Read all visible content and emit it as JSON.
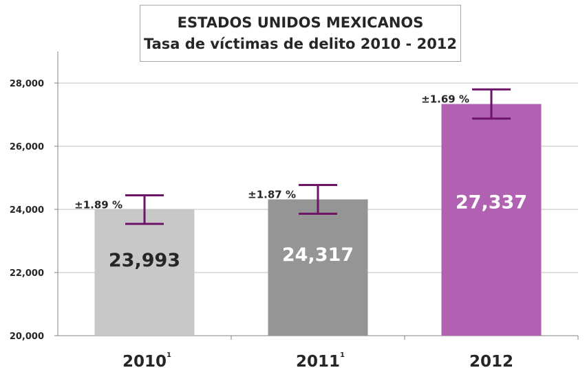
{
  "chart_data": {
    "type": "bar",
    "title": "ESTADOS UNIDOS MEXICANOS",
    "subtitle": "Tasa de víctimas de delito 2010 - 2012",
    "categories": [
      "2010",
      "2011",
      "2012"
    ],
    "category_superscripts": [
      "1",
      "1",
      ""
    ],
    "values": [
      23993,
      24317,
      27337
    ],
    "value_labels": [
      "23,993",
      "24,317",
      "27,337"
    ],
    "error_labels": [
      "±1.89 %",
      "±1.87 %",
      "±1.69 %"
    ],
    "error_pct": [
      1.89,
      1.87,
      1.69
    ],
    "colors": [
      "#c8c8c8",
      "#959595",
      "#b061b2"
    ],
    "value_label_colors": [
      "#262626",
      "#ffffff",
      "#ffffff"
    ],
    "error_bar_color": "#6e1466",
    "ylim": [
      20000,
      28000
    ],
    "yticks": [
      20000,
      22000,
      24000,
      26000,
      28000
    ],
    "ytick_labels": [
      "20,000",
      "22,000",
      "24,000",
      "26,000",
      "28,000"
    ],
    "grid": true,
    "xlabel": "",
    "ylabel": ""
  }
}
